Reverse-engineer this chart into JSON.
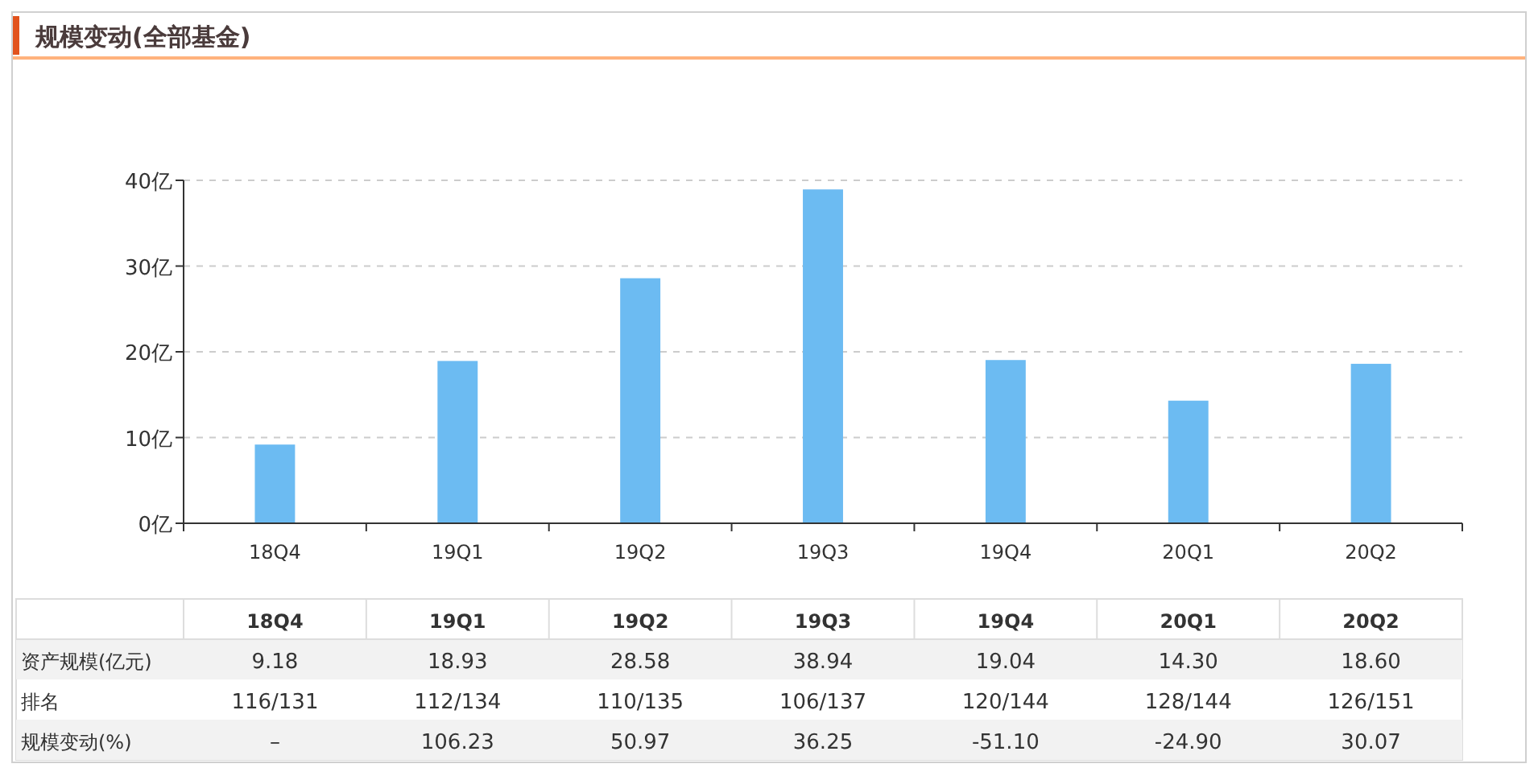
{
  "chart_data": {
    "type": "bar",
    "title": "规模变动(全部基金)",
    "categories": [
      "18Q4",
      "19Q1",
      "19Q2",
      "19Q3",
      "19Q4",
      "20Q1",
      "20Q2"
    ],
    "series": [
      {
        "name": "资产规模(亿元)",
        "color": "#6cbbf2",
        "values": [
          9.18,
          18.93,
          28.58,
          38.94,
          19.04,
          14.3,
          18.6
        ],
        "value_labels": [
          "9.18",
          "18.93",
          "28.58",
          "38.94",
          "19.04",
          "14.30",
          "18.60"
        ]
      }
    ],
    "ylim": [
      0,
      40
    ],
    "yticks": [
      {
        "value": 0,
        "label": "0亿"
      },
      {
        "value": 10,
        "label": "10亿"
      },
      {
        "value": 20,
        "label": "20亿"
      },
      {
        "value": 30,
        "label": "30亿"
      },
      {
        "value": 40,
        "label": "40亿"
      }
    ],
    "grid": "y",
    "annotations": [
      "排名",
      "116/131",
      "112/134",
      "110/135",
      "106/137",
      "120/144",
      "128/144",
      "126/151",
      "规模变动(%)",
      "–",
      "106.23",
      "50.97",
      "36.25",
      "-51.10",
      "-24.90",
      "30.07"
    ]
  }
}
